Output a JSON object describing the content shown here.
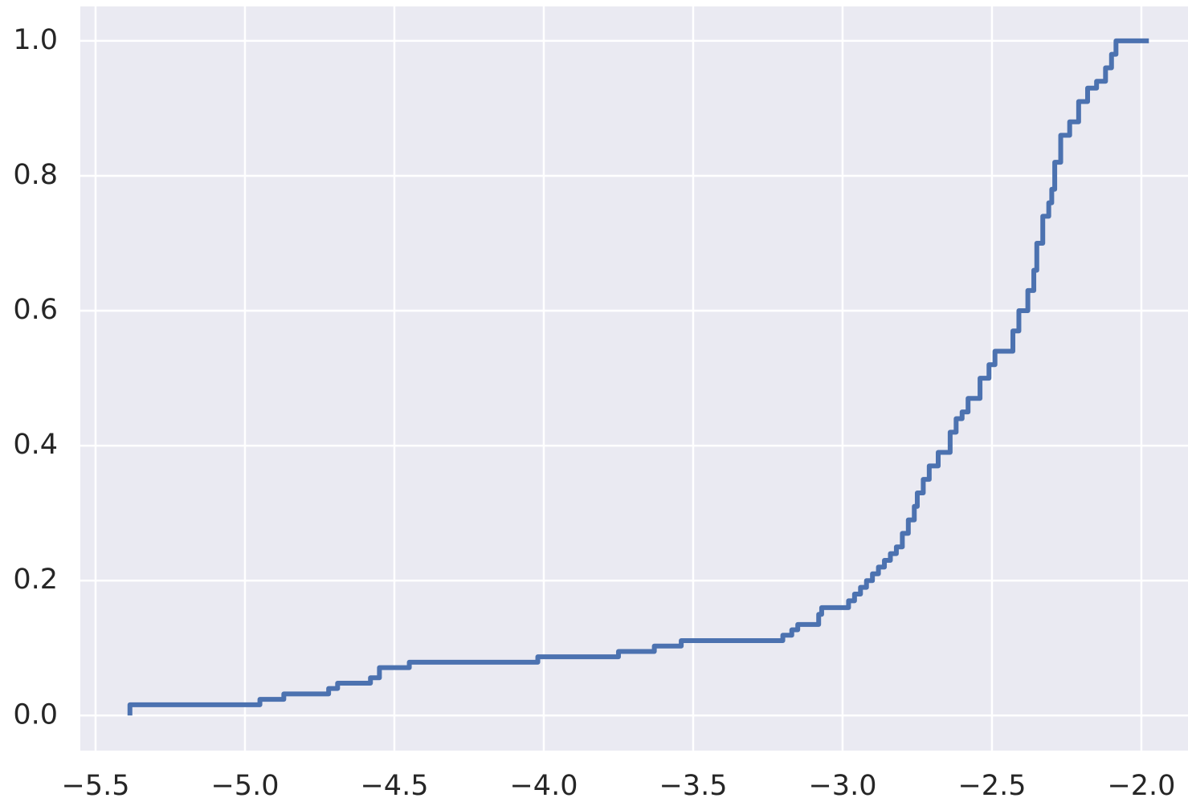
{
  "chart_data": {
    "type": "line",
    "drawstyle": "steps-post",
    "grid": true,
    "background": "#eaeaf2",
    "x": [
      -5.385,
      -5.385,
      -4.95,
      -4.87,
      -4.72,
      -4.69,
      -4.58,
      -4.55,
      -4.45,
      -4.02,
      -3.75,
      -3.63,
      -3.54,
      -3.2,
      -3.17,
      -3.15,
      -3.08,
      -3.07,
      -2.98,
      -2.96,
      -2.94,
      -2.92,
      -2.9,
      -2.88,
      -2.86,
      -2.84,
      -2.82,
      -2.8,
      -2.78,
      -2.76,
      -2.75,
      -2.73,
      -2.71,
      -2.68,
      -2.64,
      -2.62,
      -2.6,
      -2.58,
      -2.54,
      -2.51,
      -2.49,
      -2.43,
      -2.41,
      -2.38,
      -2.36,
      -2.35,
      -2.33,
      -2.31,
      -2.3,
      -2.29,
      -2.27,
      -2.24,
      -2.21,
      -2.18,
      -2.15,
      -2.12,
      -2.1,
      -2.085,
      -1.975
    ],
    "series": [
      {
        "color": "#4c72b0",
        "values": [
          0,
          0.016,
          0.024,
          0.032,
          0.04,
          0.048,
          0.056,
          0.071,
          0.079,
          0.087,
          0.095,
          0.103,
          0.111,
          0.119,
          0.127,
          0.135,
          0.15,
          0.16,
          0.17,
          0.18,
          0.19,
          0.2,
          0.21,
          0.22,
          0.23,
          0.24,
          0.25,
          0.27,
          0.29,
          0.31,
          0.33,
          0.35,
          0.37,
          0.39,
          0.42,
          0.44,
          0.45,
          0.47,
          0.5,
          0.52,
          0.54,
          0.57,
          0.6,
          0.63,
          0.66,
          0.7,
          0.74,
          0.76,
          0.78,
          0.82,
          0.86,
          0.88,
          0.91,
          0.93,
          0.94,
          0.96,
          0.98,
          1.0,
          1.0
        ]
      }
    ],
    "xlim": [
      -5.551,
      -1.844
    ],
    "ylim": [
      -0.052,
      1.051
    ],
    "xticks": [
      {
        "value": -5.5,
        "label": "−5.5"
      },
      {
        "value": -5.0,
        "label": "−5.0"
      },
      {
        "value": -4.5,
        "label": "−4.5"
      },
      {
        "value": -4.0,
        "label": "−4.0"
      },
      {
        "value": -3.5,
        "label": "−3.5"
      },
      {
        "value": -3.0,
        "label": "−3.0"
      },
      {
        "value": -2.5,
        "label": "−2.5"
      },
      {
        "value": -2.0,
        "label": "−2.0"
      }
    ],
    "yticks": [
      {
        "value": 0,
        "label": "0.0"
      },
      0.2,
      0.4,
      0.6,
      0.8,
      {
        "value": 1,
        "label": "1.0"
      }
    ]
  }
}
